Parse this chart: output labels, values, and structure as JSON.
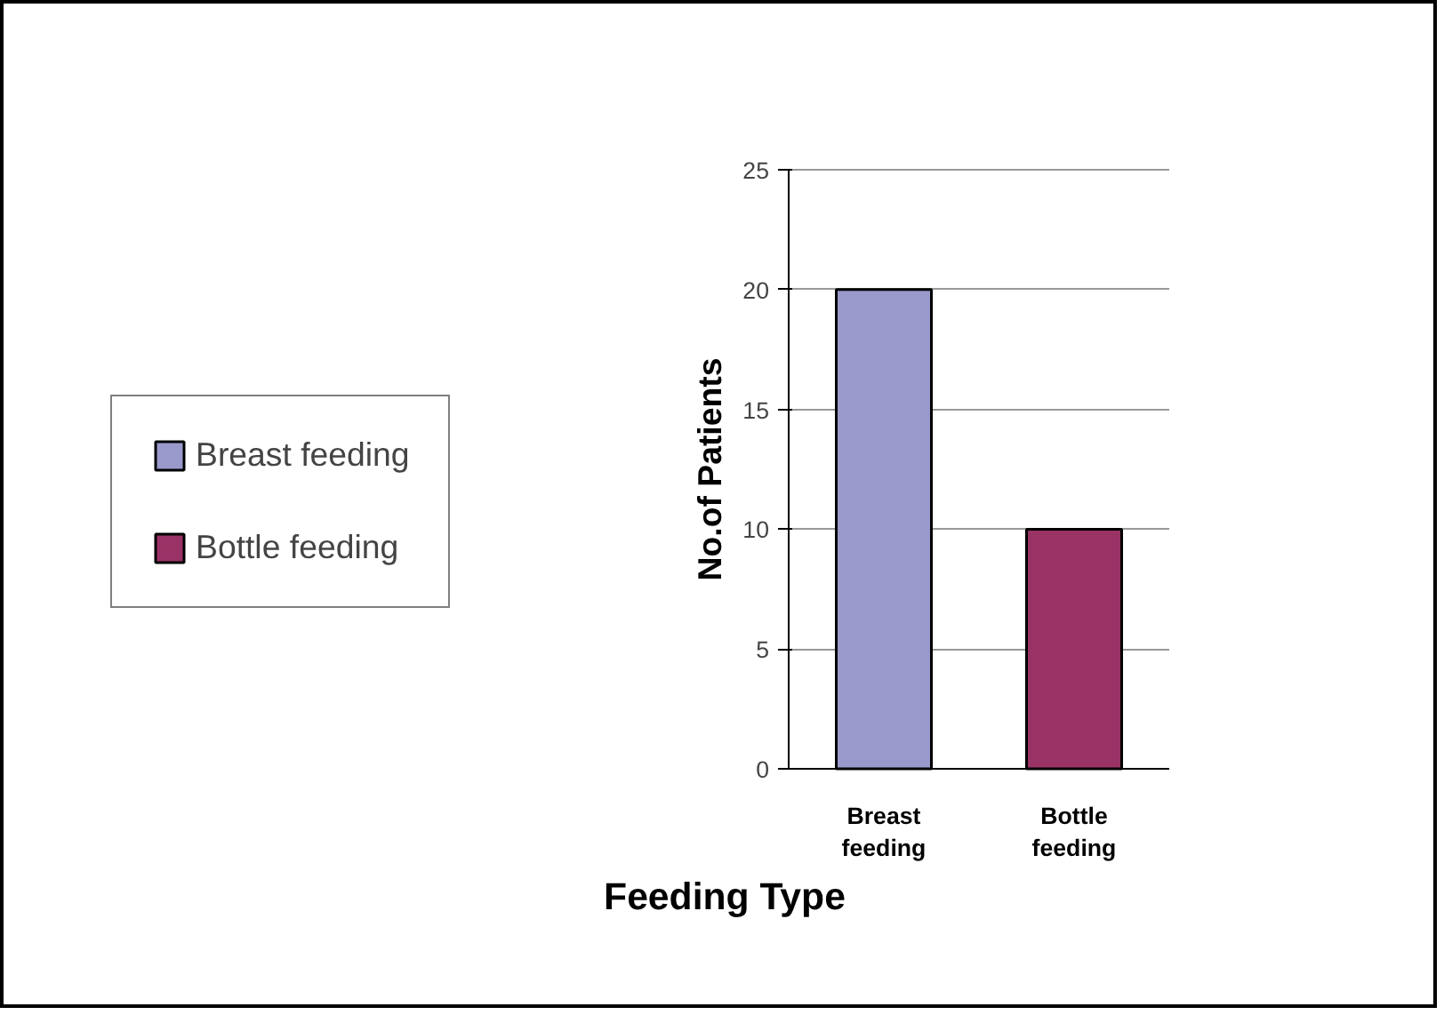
{
  "chart_data": {
    "type": "bar",
    "categories": [
      "Breast feeding",
      "Bottle feeding"
    ],
    "series": [
      {
        "name": "Breast feeding",
        "color": "#9999cc",
        "values": [
          20,
          null
        ]
      },
      {
        "name": "Bottle feeding",
        "color": "#993366",
        "values": [
          null,
          10
        ]
      }
    ],
    "xlabel": "Feeding Type",
    "ylabel": "No.of Patients",
    "ylim": [
      0,
      25
    ],
    "yticks": [
      0,
      5,
      10,
      15,
      20,
      25
    ],
    "grid": "y",
    "legend": "left"
  }
}
